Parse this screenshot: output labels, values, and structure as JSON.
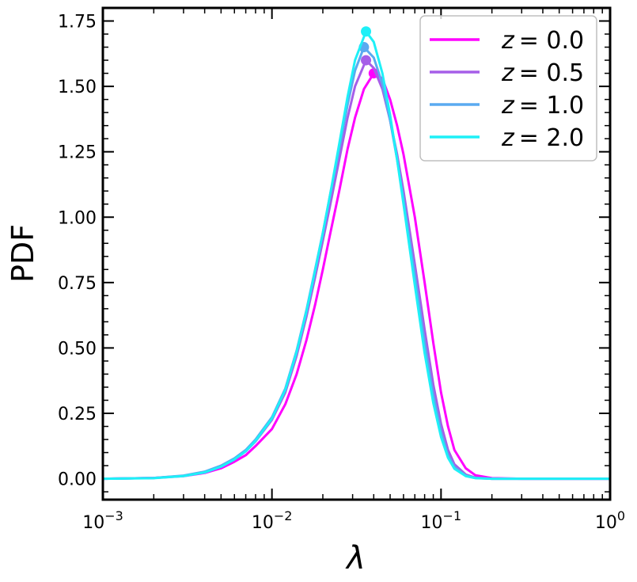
{
  "chart_data": {
    "type": "line",
    "xlabel": "λ",
    "ylabel": "PDF",
    "xscale": "log",
    "xlim": [
      0.001,
      1.0
    ],
    "ylim": [
      -0.08,
      1.8
    ],
    "grid": false,
    "legend_position": "top-right",
    "x_ticks": [
      {
        "value": 0.001,
        "base": "10",
        "exp": "−3"
      },
      {
        "value": 0.01,
        "base": "10",
        "exp": "−2"
      },
      {
        "value": 0.1,
        "base": "10",
        "exp": "−1"
      },
      {
        "value": 1.0,
        "base": "10",
        "exp": "0"
      }
    ],
    "y_ticks": [
      {
        "value": 0.0,
        "label": "0.00"
      },
      {
        "value": 0.25,
        "label": "0.25"
      },
      {
        "value": 0.5,
        "label": "0.50"
      },
      {
        "value": 0.75,
        "label": "0.75"
      },
      {
        "value": 1.0,
        "label": "1.00"
      },
      {
        "value": 1.25,
        "label": "1.25"
      },
      {
        "value": 1.5,
        "label": "1.50"
      },
      {
        "value": 1.75,
        "label": "1.75"
      }
    ],
    "series": [
      {
        "name": "z = 0.0",
        "legend_var": "z",
        "legend_val": "= 0.0",
        "color": "#ff00ff",
        "peak": [
          0.04,
          1.55
        ],
        "x": [
          0.001,
          0.002,
          0.003,
          0.004,
          0.005,
          0.006,
          0.007,
          0.008,
          0.01,
          0.012,
          0.014,
          0.016,
          0.018,
          0.02,
          0.022,
          0.025,
          0.028,
          0.031,
          0.035,
          0.04,
          0.045,
          0.05,
          0.055,
          0.06,
          0.07,
          0.08,
          0.09,
          0.1,
          0.11,
          0.12,
          0.14,
          0.16,
          0.2,
          0.3,
          0.5,
          1.0
        ],
        "y": [
          0.0,
          0.003,
          0.01,
          0.022,
          0.04,
          0.065,
          0.09,
          0.125,
          0.19,
          0.285,
          0.4,
          0.53,
          0.665,
          0.8,
          0.93,
          1.1,
          1.26,
          1.38,
          1.49,
          1.55,
          1.53,
          1.45,
          1.35,
          1.24,
          1.0,
          0.75,
          0.52,
          0.33,
          0.2,
          0.11,
          0.04,
          0.013,
          0.002,
          0.0,
          0.0,
          0.0
        ]
      },
      {
        "name": "z = 0.5",
        "legend_var": "z",
        "legend_val": "= 0.5",
        "color": "#a65ee8",
        "peak": [
          0.036,
          1.6
        ],
        "x": [
          0.001,
          0.002,
          0.003,
          0.004,
          0.005,
          0.006,
          0.007,
          0.008,
          0.01,
          0.012,
          0.014,
          0.016,
          0.018,
          0.02,
          0.022,
          0.025,
          0.028,
          0.031,
          0.036,
          0.04,
          0.045,
          0.05,
          0.055,
          0.06,
          0.07,
          0.08,
          0.09,
          0.1,
          0.11,
          0.12,
          0.14,
          0.16,
          0.2,
          0.3,
          0.5,
          1.0
        ],
        "y": [
          0.0,
          0.003,
          0.011,
          0.025,
          0.046,
          0.073,
          0.105,
          0.143,
          0.225,
          0.33,
          0.47,
          0.62,
          0.77,
          0.91,
          1.04,
          1.22,
          1.38,
          1.5,
          1.6,
          1.57,
          1.49,
          1.37,
          1.24,
          1.1,
          0.82,
          0.57,
          0.36,
          0.21,
          0.11,
          0.055,
          0.016,
          0.004,
          0.0,
          0.0,
          0.0,
          0.0
        ]
      },
      {
        "name": "z = 1.0",
        "legend_var": "z",
        "legend_val": "= 1.0",
        "color": "#5aaaf0",
        "peak": [
          0.035,
          1.65
        ],
        "x": [
          0.001,
          0.002,
          0.003,
          0.004,
          0.005,
          0.006,
          0.007,
          0.008,
          0.01,
          0.012,
          0.014,
          0.016,
          0.018,
          0.02,
          0.022,
          0.025,
          0.028,
          0.031,
          0.035,
          0.04,
          0.045,
          0.05,
          0.055,
          0.06,
          0.07,
          0.08,
          0.09,
          0.1,
          0.11,
          0.12,
          0.14,
          0.16,
          0.2,
          0.3,
          0.5,
          1.0
        ],
        "y": [
          0.0,
          0.003,
          0.012,
          0.027,
          0.05,
          0.078,
          0.11,
          0.15,
          0.235,
          0.345,
          0.49,
          0.645,
          0.8,
          0.94,
          1.08,
          1.26,
          1.43,
          1.56,
          1.65,
          1.61,
          1.51,
          1.37,
          1.22,
          1.07,
          0.78,
          0.52,
          0.32,
          0.18,
          0.09,
          0.045,
          0.012,
          0.003,
          0.0,
          0.0,
          0.0,
          0.0
        ]
      },
      {
        "name": "z = 2.0",
        "legend_var": "z",
        "legend_val": "= 2.0",
        "color": "#1ef0f7",
        "peak": [
          0.036,
          1.71
        ],
        "x": [
          0.001,
          0.002,
          0.003,
          0.004,
          0.005,
          0.006,
          0.007,
          0.008,
          0.01,
          0.012,
          0.014,
          0.016,
          0.018,
          0.02,
          0.022,
          0.025,
          0.028,
          0.031,
          0.036,
          0.04,
          0.045,
          0.05,
          0.055,
          0.06,
          0.07,
          0.08,
          0.09,
          0.1,
          0.11,
          0.12,
          0.14,
          0.16,
          0.2,
          0.3,
          0.5,
          1.0
        ],
        "y": [
          0.0,
          0.002,
          0.01,
          0.024,
          0.046,
          0.074,
          0.105,
          0.145,
          0.23,
          0.34,
          0.485,
          0.64,
          0.795,
          0.94,
          1.08,
          1.28,
          1.46,
          1.6,
          1.71,
          1.67,
          1.55,
          1.39,
          1.22,
          1.05,
          0.74,
          0.48,
          0.29,
          0.16,
          0.08,
          0.038,
          0.01,
          0.002,
          0.0,
          0.0,
          0.0,
          0.0
        ]
      }
    ]
  }
}
